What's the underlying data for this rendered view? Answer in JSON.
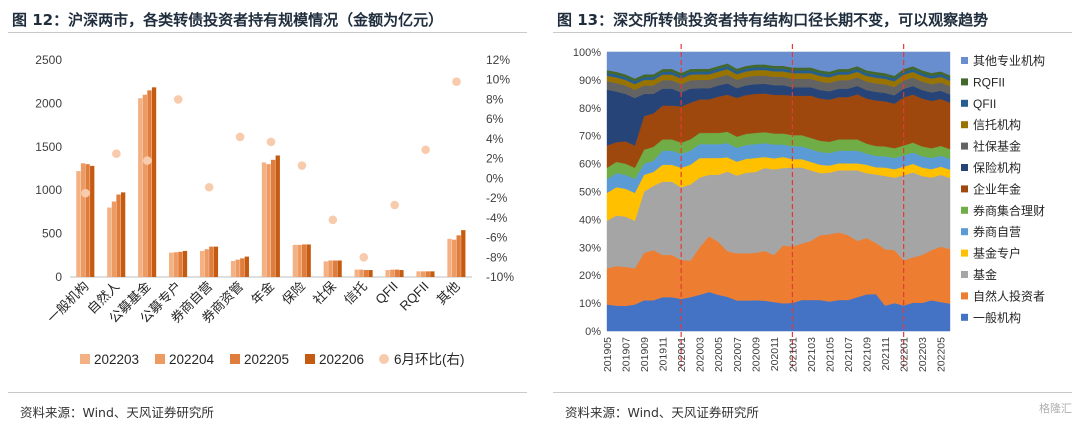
{
  "left": {
    "title": "图 12：沪深两市，各类转债投资者持有规模情况（金额为亿元）",
    "source": "资料来源：Wind、天风证券研究所",
    "chart_data": {
      "type": "bar",
      "categories": [
        "一般机构",
        "自然人",
        "公募基金",
        "公募专户",
        "券商自营",
        "券商资管",
        "年金",
        "保险",
        "社保",
        "信托",
        "QFII",
        "RQFII",
        "其他"
      ],
      "series": [
        {
          "name": "202203",
          "color": "#f4b183",
          "values": [
            1220,
            800,
            2060,
            280,
            300,
            185,
            1320,
            370,
            180,
            85,
            80,
            65,
            440
          ]
        },
        {
          "name": "202204",
          "color": "#ed9a63",
          "values": [
            1310,
            870,
            2100,
            285,
            320,
            200,
            1300,
            370,
            190,
            85,
            85,
            65,
            430
          ]
        },
        {
          "name": "202205",
          "color": "#e07c3c",
          "values": [
            1300,
            950,
            2150,
            290,
            350,
            215,
            1350,
            375,
            190,
            80,
            85,
            65,
            480
          ]
        },
        {
          "name": "202206",
          "color": "#c55a11",
          "values": [
            1280,
            975,
            2185,
            300,
            350,
            235,
            1400,
            375,
            190,
            80,
            80,
            65,
            540
          ]
        }
      ],
      "line": {
        "name": "6月环比(右)",
        "color": "#f8cbad",
        "values": [
          -1.5,
          2.5,
          1.8,
          8.0,
          -0.9,
          4.2,
          3.7,
          1.3,
          -4.2,
          -8.0,
          -2.7,
          2.9,
          9.8
        ]
      },
      "ylim": [
        0,
        2500
      ],
      "yticks": [
        0,
        500,
        1000,
        1500,
        2000,
        2500
      ],
      "y2lim": [
        -10,
        12
      ],
      "y2ticks": [
        -10,
        -8,
        -6,
        -4,
        -2,
        0,
        2,
        4,
        6,
        8,
        10,
        12
      ],
      "legend_position": "bottom"
    }
  },
  "right": {
    "title": "图 13：深交所转债投资者持有结构口径长期不变，可以观察趋势",
    "source": "资料来源：Wind、天风证券研究所",
    "watermark": "格隆汇",
    "chart_data": {
      "type": "area",
      "stacked": true,
      "x": [
        "201905",
        "201906",
        "201907",
        "201908",
        "201909",
        "201910",
        "201911",
        "201912",
        "202001",
        "202002",
        "202003",
        "202004",
        "202005",
        "202006",
        "202007",
        "202008",
        "202009",
        "202010",
        "202011",
        "202012",
        "202101",
        "202102",
        "202103",
        "202104",
        "202105",
        "202106",
        "202107",
        "202108",
        "202109",
        "202110",
        "202111",
        "202112",
        "202201",
        "202202",
        "202203",
        "202204",
        "202205",
        "202206"
      ],
      "xticks": [
        "201905",
        "201907",
        "201909",
        "201911",
        "202001",
        "202003",
        "202005",
        "202007",
        "202009",
        "202011",
        "202101",
        "202103",
        "202105",
        "202107",
        "202109",
        "202111",
        "202201",
        "202203",
        "202205"
      ],
      "ylim": [
        0,
        100
      ],
      "yticks": [
        0,
        10,
        20,
        30,
        40,
        50,
        60,
        70,
        80,
        90,
        100
      ],
      "ytick_suffix": "%",
      "vlines": [
        "202001",
        "202101",
        "202201"
      ],
      "vline_color": "#e53935",
      "series": [
        {
          "name": "一般机构",
          "color": "#4472c4",
          "values": [
            9.5,
            9,
            9,
            9.5,
            11,
            11,
            12,
            12,
            11.5,
            12,
            13,
            14,
            13,
            12,
            11,
            11,
            11,
            11,
            10.5,
            10,
            10,
            11,
            11,
            11,
            10.5,
            11,
            11,
            12,
            13,
            13,
            9,
            10,
            9,
            10,
            10,
            11,
            10.5,
            10
          ]
        },
        {
          "name": "自然人投资者",
          "color": "#ed7d31",
          "values": [
            13,
            14,
            14,
            13,
            17,
            18,
            15,
            15,
            14,
            13,
            17,
            20,
            19,
            16,
            17,
            17,
            17,
            18,
            17,
            21,
            20,
            20,
            21,
            23,
            24,
            24,
            23,
            20,
            20,
            18,
            20,
            19,
            16,
            16,
            17,
            18,
            20,
            20
          ]
        },
        {
          "name": "基金",
          "color": "#a5a5a5",
          "values": [
            17,
            18,
            18,
            17,
            22,
            23,
            26,
            26,
            26,
            27,
            25,
            22,
            24,
            28,
            28,
            29,
            29,
            30,
            31,
            28,
            28,
            27,
            25,
            22,
            22,
            22,
            23,
            25,
            23,
            24,
            26,
            26,
            30,
            30,
            28,
            26,
            26,
            26
          ]
        },
        {
          "name": "基金专户",
          "color": "#ffc000",
          "values": [
            10,
            10,
            10,
            10,
            6,
            5,
            6,
            6,
            7,
            7,
            7,
            6,
            6,
            5,
            5,
            5,
            5,
            4,
            4,
            4,
            3,
            3,
            3,
            3,
            2.5,
            2.5,
            2.5,
            2.5,
            3,
            2.5,
            3,
            3,
            3,
            3,
            3,
            3,
            3,
            3
          ]
        },
        {
          "name": "券商自营",
          "color": "#5b9bd5",
          "values": [
            5,
            5,
            5,
            5,
            4,
            4,
            5,
            5,
            5,
            5,
            5,
            5,
            5,
            5,
            5,
            5,
            5,
            5,
            5,
            4.5,
            4.5,
            4.5,
            4.5,
            4.5,
            4.5,
            4.5,
            4.5,
            4.5,
            4,
            4,
            4,
            4,
            4,
            4,
            4,
            4,
            4,
            4
          ]
        },
        {
          "name": "券商集合理财",
          "color": "#70ad47",
          "values": [
            4,
            4,
            4,
            4,
            5,
            5,
            4,
            4,
            4,
            4,
            4,
            4,
            4,
            4,
            4,
            4,
            4,
            4,
            4,
            4,
            4,
            4,
            4,
            4,
            4,
            4,
            4,
            4,
            3.5,
            3.5,
            3.5,
            3.5,
            3.5,
            3.5,
            3.5,
            3.5,
            3.5,
            3.5
          ]
        },
        {
          "name": "企业年金",
          "color": "#9e480e",
          "values": [
            8,
            7,
            8,
            8,
            12,
            12,
            12,
            12,
            13,
            13,
            12,
            12,
            13,
            13,
            14,
            14,
            14,
            14,
            14,
            14,
            14,
            14,
            15,
            15,
            15,
            15,
            15,
            16,
            16,
            16,
            16,
            16,
            17,
            17,
            17,
            17,
            17,
            17
          ]
        },
        {
          "name": "保险机构",
          "color": "#264478",
          "values": [
            20,
            18,
            17,
            17,
            8,
            7,
            6,
            6,
            5,
            5,
            4,
            4,
            4,
            4,
            3.5,
            3.5,
            3.5,
            3.5,
            3.5,
            3.5,
            3,
            3,
            3,
            3,
            3,
            3,
            3,
            3,
            3,
            3,
            3,
            3,
            3,
            3,
            3,
            3,
            3,
            3
          ]
        },
        {
          "name": "社保基金",
          "color": "#636363",
          "values": [
            3,
            3,
            3,
            3,
            3,
            3,
            3,
            3,
            3,
            3,
            3,
            3,
            3,
            3,
            3,
            3,
            3,
            3,
            3,
            3,
            3,
            3,
            3,
            3,
            3,
            3,
            3,
            3,
            3,
            3,
            3,
            3,
            3,
            3,
            3,
            3,
            3,
            3
          ]
        },
        {
          "name": "信托机构",
          "color": "#997300",
          "values": [
            2,
            2,
            2,
            2,
            2,
            2,
            2,
            2,
            2,
            2,
            2,
            2,
            2,
            2,
            2,
            2,
            2,
            2,
            2,
            2,
            2,
            2,
            2,
            2,
            2,
            2,
            2,
            2,
            2,
            2,
            2,
            2,
            2,
            2,
            2,
            2,
            2,
            2
          ]
        },
        {
          "name": "QFII",
          "color": "#255e91",
          "values": [
            1,
            1,
            1,
            1,
            1,
            1,
            1,
            1,
            1,
            1,
            1,
            1,
            1,
            1,
            1,
            1,
            1,
            1,
            1,
            1,
            1,
            1,
            1,
            1,
            1,
            1,
            1,
            1,
            1,
            1,
            1,
            1,
            1,
            1,
            1,
            1,
            1,
            1
          ]
        },
        {
          "name": "RQFII",
          "color": "#43682b",
          "values": [
            1,
            1,
            1,
            1,
            1,
            1,
            1,
            1,
            1,
            1,
            1,
            1,
            1,
            1,
            1,
            1,
            1,
            1,
            1,
            1,
            1,
            1,
            1,
            1,
            1,
            1,
            1,
            1,
            1,
            1,
            1,
            1,
            1,
            1,
            1,
            1,
            1,
            1
          ]
        },
        {
          "name": "其他专业机构",
          "color": "#698ed0",
          "values": [
            6.5,
            7,
            8,
            9.5,
            8,
            8,
            6,
            6,
            7.5,
            6,
            6,
            6,
            5,
            4,
            6,
            5,
            4.5,
            4.5,
            5,
            5,
            5.5,
            5.5,
            5.5,
            6.5,
            7,
            6,
            6,
            5,
            6.5,
            7,
            7.5,
            8.5,
            6,
            5,
            6.5,
            7.5,
            7,
            8.5
          ]
        }
      ],
      "legend_position": "right"
    }
  }
}
